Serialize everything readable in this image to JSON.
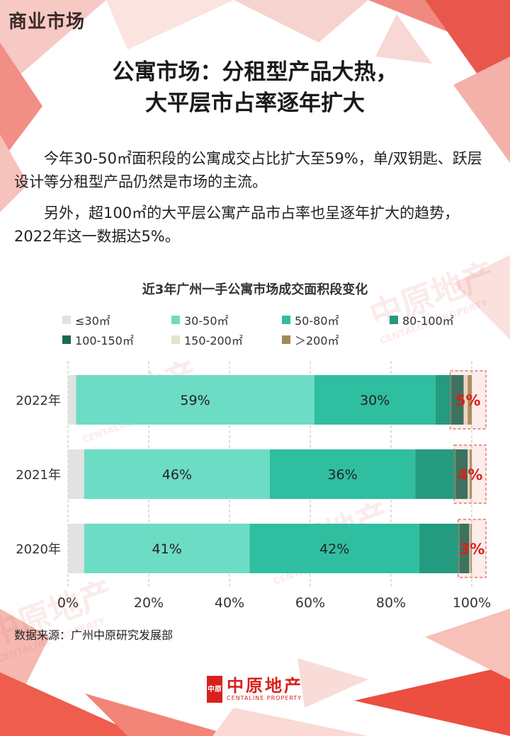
{
  "section_tag": "商业市场",
  "title": {
    "line1": "公寓市场：分租型产品大热，",
    "line2": "大平层市占率逐年扩大"
  },
  "paragraphs": [
    "今年30-50㎡面积段的公寓成交占比扩大至59%，单/双钥匙、跃层设计等分租型产品仍然是市场的主流。",
    "另外，超100㎡的大平层公寓产品市占率也呈逐年扩大的趋势，2022年这一数据达5%。"
  ],
  "source_note": "数据来源：广州中原研究发展部",
  "brand": {
    "name_cn": "中原地产",
    "name_en": "CENTALINE PROPERTY",
    "seal": "中原"
  },
  "watermark": {
    "name_cn": "中原地产",
    "name_en": "CENTALINE PROPERTY"
  },
  "colors": {
    "accent_red": "#d8201c",
    "le30": "#e2e2e2",
    "s30_50": "#6ddcc4",
    "s50_80": "#2fbfa0",
    "s80_100": "#249a7f",
    "s100_150": "#156b55",
    "s150_200": "#e7e2cf",
    "gt200": "#a08a55"
  },
  "chart_data": {
    "type": "bar",
    "orientation": "horizontal",
    "stacked": true,
    "title": "近3年广州一手公寓市场成交面积段变化",
    "categories": [
      "2022年",
      "2021年",
      "2020年"
    ],
    "series": [
      {
        "name": "≤30㎡",
        "color_key": "le30",
        "values": [
          2,
          4,
          4
        ]
      },
      {
        "name": "30-50㎡",
        "color_key": "s30_50",
        "values": [
          59,
          46,
          41
        ]
      },
      {
        "name": "50-80㎡",
        "color_key": "s50_80",
        "values": [
          30,
          36,
          42
        ]
      },
      {
        "name": "80-100㎡",
        "color_key": "s80_100",
        "values": [
          4,
          10,
          10
        ]
      },
      {
        "name": "100-150㎡",
        "color_key": "s100_150",
        "values": [
          3,
          3,
          2.4
        ]
      },
      {
        "name": "150-200㎡",
        "color_key": "s150_200",
        "values": [
          1,
          0.5,
          0.3
        ]
      },
      {
        "name": "＞200㎡",
        "color_key": "gt200",
        "values": [
          1,
          0.5,
          0.3
        ]
      }
    ],
    "labeled_series": [
      "30-50㎡",
      "50-80㎡"
    ],
    "highlight": {
      "from_series": "100-150㎡",
      "labels": [
        "5%",
        "4%",
        "3%"
      ]
    },
    "xlim": [
      0,
      100
    ],
    "xticks": [
      0,
      20,
      40,
      60,
      80,
      100
    ],
    "xtick_labels": [
      "0%",
      "20%",
      "40%",
      "60%",
      "80%",
      "100%"
    ],
    "grid": "vertical-dashed",
    "legend": "top"
  }
}
